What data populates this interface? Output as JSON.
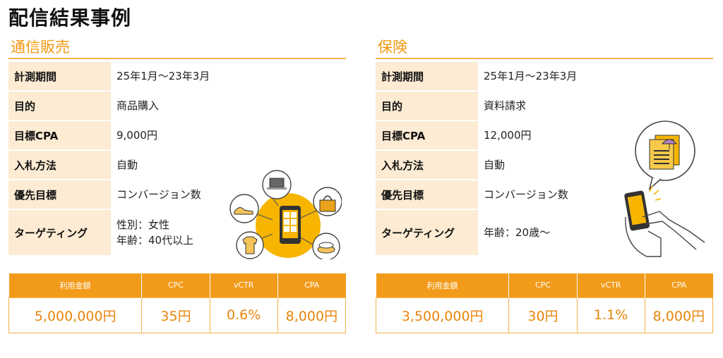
{
  "page_title": "配信結果事例",
  "sections": [
    {
      "title": "通信販売",
      "rows": [
        {
          "label": "計測期間",
          "value": "25年1月～23年3月"
        },
        {
          "label": "目的",
          "value": "商品購入"
        },
        {
          "label": "目標CPA",
          "value": "9,000円"
        },
        {
          "label": "入札方法",
          "value": "自動"
        },
        {
          "label": "優先目標",
          "value": "コンバージョン数"
        },
        {
          "label": "ターゲティング",
          "value": "性別：女性",
          "value2": "年齢：40代以上"
        }
      ],
      "results": {
        "headers": [
          "利用金額",
          "CPC",
          "vCTR",
          "CPA"
        ],
        "values": [
          "5,000,000円",
          "35円",
          "0.6%",
          "8,000円"
        ]
      }
    },
    {
      "title": "保険",
      "rows": [
        {
          "label": "計測期間",
          "value": "25年1月～23年3月"
        },
        {
          "label": "目的",
          "value": "資料請求"
        },
        {
          "label": "目標CPA",
          "value": "12,000円"
        },
        {
          "label": "入札方法",
          "value": "自動"
        },
        {
          "label": "優先目標",
          "value": "コンバージョン数"
        },
        {
          "label": "ターゲティング",
          "value": "年齢：20歳～"
        }
      ],
      "results": {
        "headers": [
          "利用金額",
          "CPC",
          "vCTR",
          "CPA"
        ],
        "values": [
          "3,500,000円",
          "30円",
          "1.1%",
          "8,000円"
        ]
      }
    }
  ],
  "colors": {
    "accent": "#f29b1a",
    "label_bg": "#fdebd3",
    "section_title": "#f0980e"
  },
  "icons": [
    "shopping-phone-illustration",
    "insurance-phone-illustration"
  ]
}
